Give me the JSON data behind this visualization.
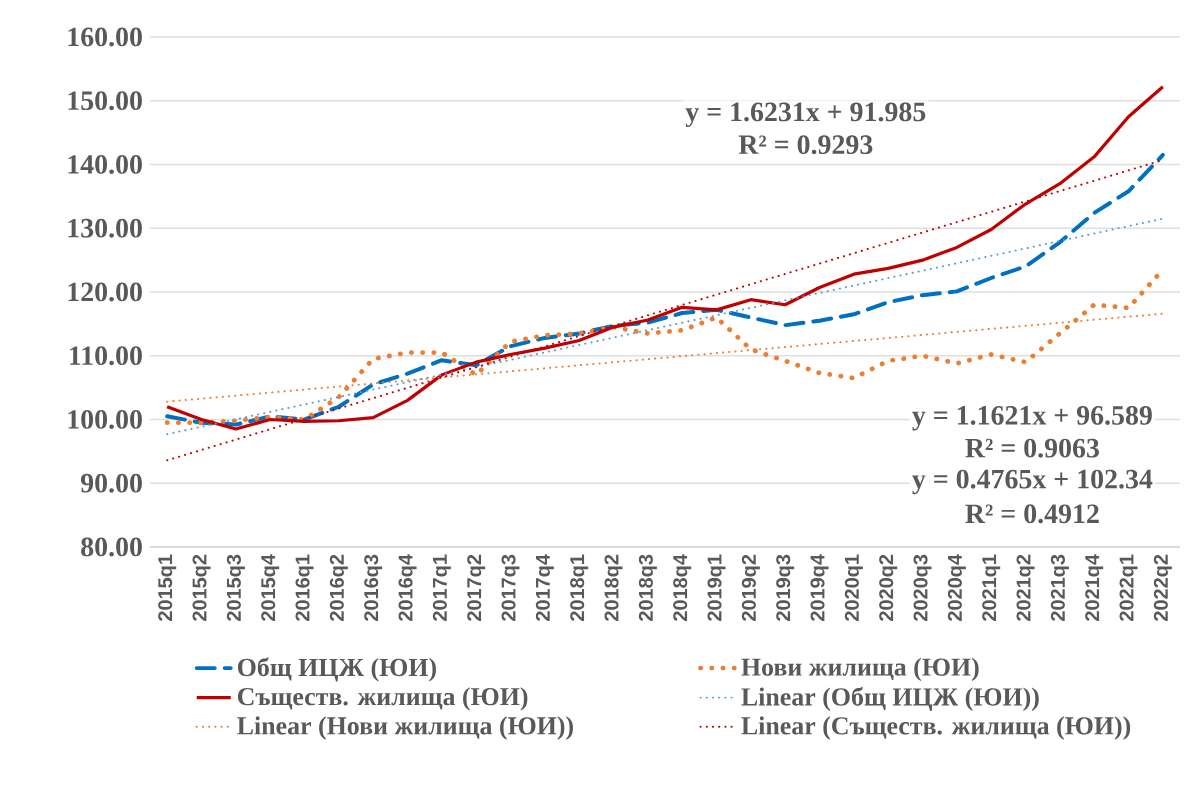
{
  "chart_data": {
    "type": "line",
    "categories": [
      "2015q1",
      "2015q2",
      "2015q3",
      "2015q4",
      "2016q1",
      "2016q2",
      "2016q3",
      "2016q4",
      "2017q1",
      "2017q2",
      "2017q3",
      "2017q4",
      "2018q1",
      "2018q2",
      "2018q3",
      "2018q4",
      "2019q1",
      "2019q2",
      "2019q3",
      "2019q4",
      "2020q1",
      "2020q2",
      "2020q3",
      "2020q4",
      "2021q1",
      "2021q2",
      "2021q3",
      "2021q4",
      "2022q1",
      "2022q2"
    ],
    "series": [
      {
        "name": "Общ ИЦЖ (ЮИ)",
        "color": "#0070c0",
        "line_style": "dashed",
        "values": [
          100.5,
          99.5,
          99.2,
          100.5,
          100.0,
          102.0,
          105.5,
          107.2,
          109.3,
          108.5,
          111.5,
          112.8,
          113.5,
          114.7,
          115.2,
          116.7,
          117.2,
          116.0,
          114.8,
          115.5,
          116.5,
          118.4,
          119.5,
          120.1,
          122.2,
          124.0,
          127.8,
          132.4,
          135.8,
          141.5
        ]
      },
      {
        "name": "Нови жилища (ЮИ)",
        "color": "#ed7d31",
        "line_style": "dotted",
        "values": [
          99.5,
          99.5,
          99.8,
          100.4,
          100.0,
          103.5,
          109.5,
          110.5,
          110.5,
          107.0,
          112.2,
          113.2,
          113.5,
          114.5,
          113.5,
          114.0,
          116.0,
          111.0,
          109.2,
          107.3,
          106.5,
          109.2,
          110.0,
          108.8,
          110.2,
          109.0,
          113.5,
          118.0,
          117.5,
          123.5
        ]
      },
      {
        "name": "Съществ. жилища (ЮИ)",
        "color": "#c00000",
        "line_style": "solid",
        "values": [
          102.0,
          100.0,
          98.5,
          100.0,
          99.7,
          99.8,
          100.3,
          103.0,
          107.0,
          109.0,
          110.2,
          111.2,
          112.4,
          114.5,
          115.6,
          117.6,
          117.2,
          118.8,
          118.0,
          120.7,
          122.8,
          123.7,
          125.0,
          127.0,
          129.8,
          133.8,
          137.0,
          141.2,
          147.5,
          152.2
        ]
      },
      {
        "name": "Linear (Общ ИЦЖ (ЮИ))",
        "color": "#5b9bd5",
        "line_style": "dotted",
        "values": [
          97.7,
          null,
          null,
          null,
          null,
          null,
          null,
          null,
          null,
          null,
          null,
          null,
          null,
          null,
          null,
          null,
          null,
          null,
          null,
          null,
          null,
          null,
          null,
          null,
          null,
          null,
          null,
          null,
          null,
          131.5
        ]
      },
      {
        "name": "Linear (Нови жилища (ЮИ))",
        "color": "#ed7d31",
        "line_style": "dotted",
        "values": [
          102.8,
          null,
          null,
          null,
          null,
          null,
          null,
          null,
          null,
          null,
          null,
          null,
          null,
          null,
          null,
          null,
          null,
          null,
          null,
          null,
          null,
          null,
          null,
          null,
          null,
          null,
          null,
          null,
          null,
          116.6
        ]
      },
      {
        "name": "Linear (Съществ. жилища (ЮИ))",
        "color": "#c00000",
        "line_style": "dotted",
        "values": [
          93.6,
          null,
          null,
          null,
          null,
          null,
          null,
          null,
          null,
          null,
          null,
          null,
          null,
          null,
          null,
          null,
          null,
          null,
          null,
          null,
          null,
          null,
          null,
          null,
          null,
          null,
          null,
          null,
          null,
          140.7
        ]
      }
    ],
    "ylim": [
      80,
      160
    ],
    "yticks": [
      {
        "value": 80,
        "label": "80.00"
      },
      {
        "value": 90,
        "label": "90.00"
      },
      {
        "value": 100,
        "label": "100.00"
      },
      {
        "value": 110,
        "label": "110.00"
      },
      {
        "value": 120,
        "label": "120.00"
      },
      {
        "value": 130,
        "label": "130.00"
      },
      {
        "value": 140,
        "label": "140.00"
      },
      {
        "value": 150,
        "label": "150.00"
      },
      {
        "value": 160,
        "label": "160.00"
      }
    ],
    "grid": "y",
    "legend": "bottom",
    "annotations": [
      "y = 1.6231x + 91.985",
      "R² = 0.9293",
      "y = 1.1621x + 96.589",
      "R² = 0.9063",
      "y = 0.4765x + 102.34",
      "R² = 0.4912"
    ]
  }
}
